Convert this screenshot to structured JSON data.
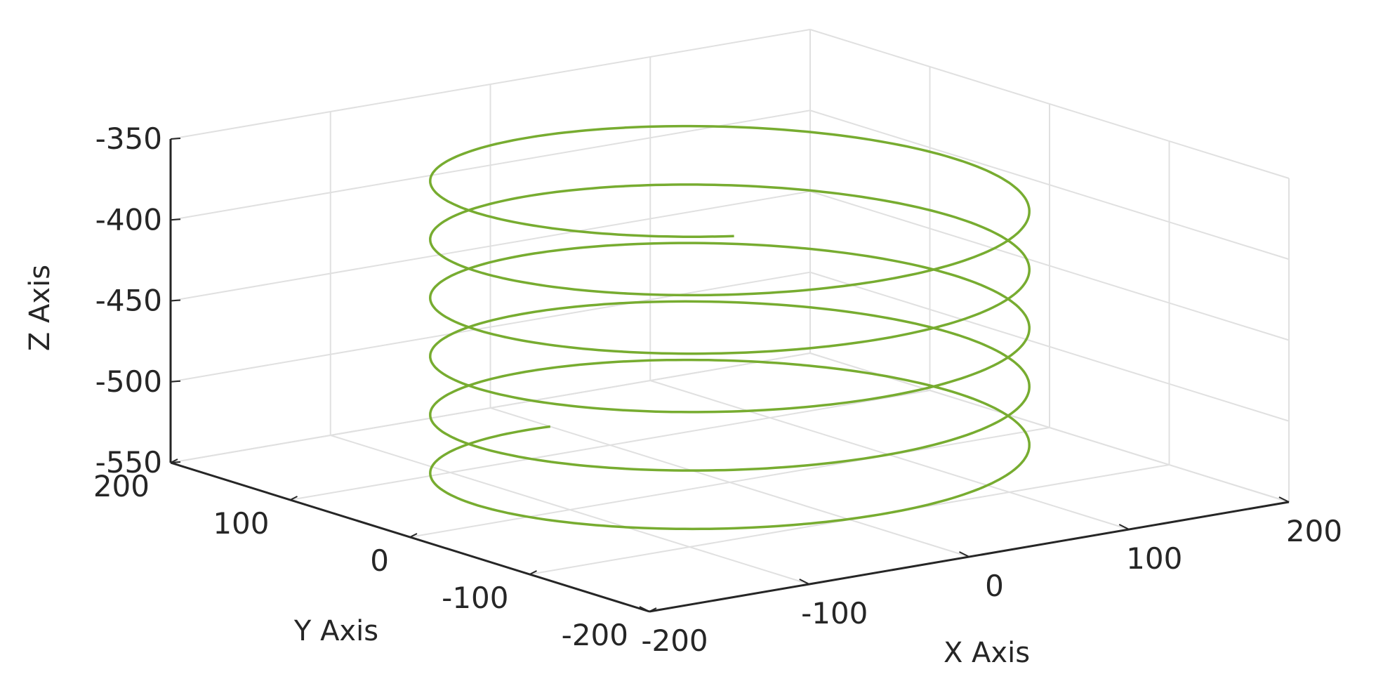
{
  "chart_data": {
    "type": "line",
    "subtype": "3d-helix",
    "title": "",
    "xlabel": "X Axis",
    "ylabel": "Y Axis",
    "zlabel": "Z Axis",
    "xlim": [
      -200,
      200
    ],
    "ylim": [
      -200,
      200
    ],
    "zlim": [
      -550,
      -350
    ],
    "xticks": [
      -200,
      -100,
      0,
      100,
      200
    ],
    "yticks": [
      -200,
      -100,
      0,
      100,
      200
    ],
    "zticks": [
      -550,
      -500,
      -450,
      -400,
      -350
    ],
    "grid": true,
    "colors": {
      "series": "#77ac30",
      "grid": "#e0e0e0",
      "axis": "#262626"
    },
    "series": [
      {
        "curve": "helix",
        "center_x": 0,
        "center_y": 0,
        "radius": 150,
        "z_start": -550,
        "z_end": -355,
        "turns": 5.4,
        "points": 1200
      }
    ]
  }
}
